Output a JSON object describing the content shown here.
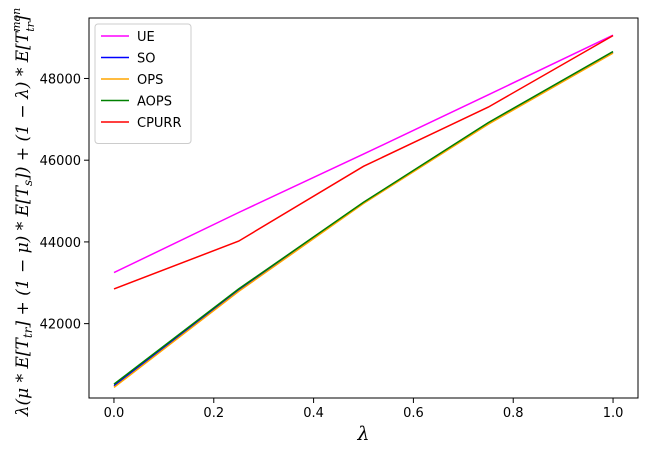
{
  "chart_data": {
    "type": "line",
    "title": "",
    "xlabel": "λ",
    "ylabel": "λ(μ * E[T_tr] + (1 − μ) * E[T_s]) + (1 − λ) * E[T_tr^mon]",
    "ylabel_parts": {
      "a": "λ(μ * E[T",
      "a_sub": "tr",
      "b": "] + (1 − μ) * E[T",
      "b_sub": "s",
      "c": "]) + (1 − λ) * E[T",
      "c_sup": "mon",
      "c_sub": "tr",
      "d": "]"
    },
    "x": [
      0.0,
      0.25,
      0.5,
      0.75,
      1.0
    ],
    "xlim": [
      -0.05,
      1.05
    ],
    "ylim": [
      40180,
      49480
    ],
    "x_ticks": [
      0.0,
      0.2,
      0.4,
      0.6,
      0.8,
      1.0
    ],
    "x_tick_labels": [
      "0.0",
      "0.2",
      "0.4",
      "0.6",
      "0.8",
      "1.0"
    ],
    "y_ticks": [
      42000,
      44000,
      46000,
      48000
    ],
    "y_tick_labels": [
      "42000",
      "44000",
      "46000",
      "48000"
    ],
    "grid": false,
    "legend_position": "top-left",
    "series": [
      {
        "name": "UE",
        "color": "#ff00ff",
        "values": [
          43250,
          44720,
          46150,
          47600,
          49060
        ]
      },
      {
        "name": "SO",
        "color": "#0000ff",
        "values": [
          40480,
          42820,
          44950,
          46900,
          48640
        ]
      },
      {
        "name": "OPS",
        "color": "#ffa500",
        "values": [
          40440,
          42790,
          44940,
          46880,
          48620
        ]
      },
      {
        "name": "AOPS",
        "color": "#008000",
        "values": [
          40520,
          42850,
          44970,
          46920,
          48660
        ]
      },
      {
        "name": "CPURR",
        "color": "#ff0000",
        "values": [
          42850,
          44020,
          45850,
          47300,
          49050
        ]
      }
    ]
  }
}
